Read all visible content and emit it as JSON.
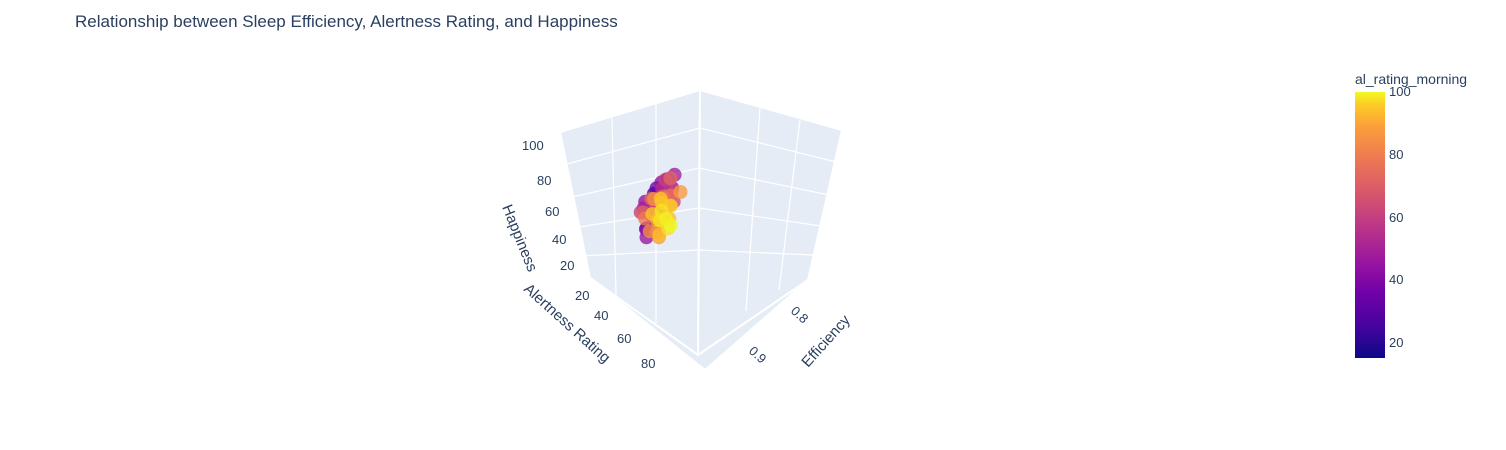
{
  "chart_data": {
    "type": "scatter",
    "subtype": "scatter3d",
    "title": "Relationship between Sleep Efficiency, Alertness Rating, and Happiness",
    "x_axis": {
      "label": "Efficiency",
      "ticks": [
        "0.8",
        "0.9"
      ],
      "range": [
        0.7,
        0.98
      ]
    },
    "y_axis": {
      "label": "Alertness Rating",
      "ticks": [
        "20",
        "40",
        "60",
        "80"
      ],
      "range": [
        10,
        100
      ]
    },
    "z_axis": {
      "label": "Happiness",
      "ticks": [
        "20",
        "40",
        "60",
        "80",
        "100"
      ],
      "range": [
        10,
        100
      ]
    },
    "color": {
      "title": "al_rating_morning",
      "ticks": [
        "20",
        "40",
        "60",
        "80",
        "100"
      ],
      "range": [
        15,
        100
      ],
      "colorscale": [
        "#0d0887",
        "#46039f",
        "#7201a8",
        "#9c179e",
        "#bd3786",
        "#d8576b",
        "#ed7953",
        "#fb9f3a",
        "#fdca26",
        "#f0f921"
      ]
    },
    "points": [
      [
        0.74,
        15,
        30,
        15
      ],
      [
        0.76,
        22,
        42,
        25
      ],
      [
        0.78,
        25,
        55,
        35
      ],
      [
        0.8,
        30,
        48,
        38
      ],
      [
        0.82,
        28,
        60,
        40
      ],
      [
        0.79,
        35,
        52,
        42
      ],
      [
        0.84,
        32,
        58,
        45
      ],
      [
        0.77,
        40,
        62,
        44
      ],
      [
        0.81,
        42,
        55,
        48
      ],
      [
        0.83,
        38,
        50,
        50
      ],
      [
        0.86,
        45,
        57,
        52
      ],
      [
        0.8,
        48,
        64,
        55
      ],
      [
        0.88,
        40,
        60,
        55
      ],
      [
        0.75,
        30,
        66,
        35
      ],
      [
        0.85,
        50,
        53,
        58
      ],
      [
        0.87,
        52,
        61,
        60
      ],
      [
        0.82,
        55,
        58,
        58
      ],
      [
        0.9,
        48,
        62,
        65
      ],
      [
        0.84,
        58,
        65,
        62
      ],
      [
        0.89,
        60,
        55,
        66
      ],
      [
        0.92,
        55,
        60,
        72
      ],
      [
        0.86,
        62,
        67,
        68
      ],
      [
        0.91,
        65,
        58,
        74
      ],
      [
        0.88,
        68,
        63,
        72
      ],
      [
        0.93,
        62,
        52,
        78
      ],
      [
        0.9,
        70,
        65,
        76
      ],
      [
        0.94,
        72,
        60,
        85
      ],
      [
        0.87,
        75,
        70,
        80
      ],
      [
        0.95,
        70,
        66,
        90
      ],
      [
        0.92,
        78,
        58,
        88
      ],
      [
        0.96,
        80,
        62,
        96
      ],
      [
        0.93,
        82,
        68,
        92
      ],
      [
        0.95,
        85,
        55,
        95
      ],
      [
        0.97,
        88,
        64,
        98
      ],
      [
        0.94,
        76,
        72,
        86
      ],
      [
        0.78,
        45,
        72,
        45
      ],
      [
        0.8,
        38,
        70,
        40
      ],
      [
        0.83,
        50,
        75,
        56
      ],
      [
        0.85,
        60,
        78,
        66
      ],
      [
        0.82,
        44,
        68,
        50
      ],
      [
        0.79,
        30,
        45,
        28
      ],
      [
        0.81,
        26,
        40,
        30
      ],
      [
        0.84,
        35,
        44,
        38
      ],
      [
        0.86,
        40,
        40,
        42
      ],
      [
        0.88,
        55,
        45,
        64
      ],
      [
        0.9,
        62,
        48,
        74
      ],
      [
        0.92,
        68,
        46,
        80
      ],
      [
        0.94,
        74,
        50,
        88
      ],
      [
        0.96,
        90,
        58,
        100
      ],
      [
        0.97,
        84,
        70,
        96
      ],
      [
        0.76,
        20,
        58,
        22
      ],
      [
        0.78,
        28,
        64,
        32
      ],
      [
        0.8,
        32,
        56,
        36
      ],
      [
        0.83,
        46,
        63,
        52
      ],
      [
        0.85,
        52,
        66,
        58
      ],
      [
        0.87,
        58,
        52,
        64
      ],
      [
        0.89,
        64,
        70,
        70
      ],
      [
        0.91,
        58,
        72,
        66
      ],
      [
        0.93,
        66,
        74,
        78
      ],
      [
        0.95,
        78,
        76,
        90
      ]
    ]
  }
}
